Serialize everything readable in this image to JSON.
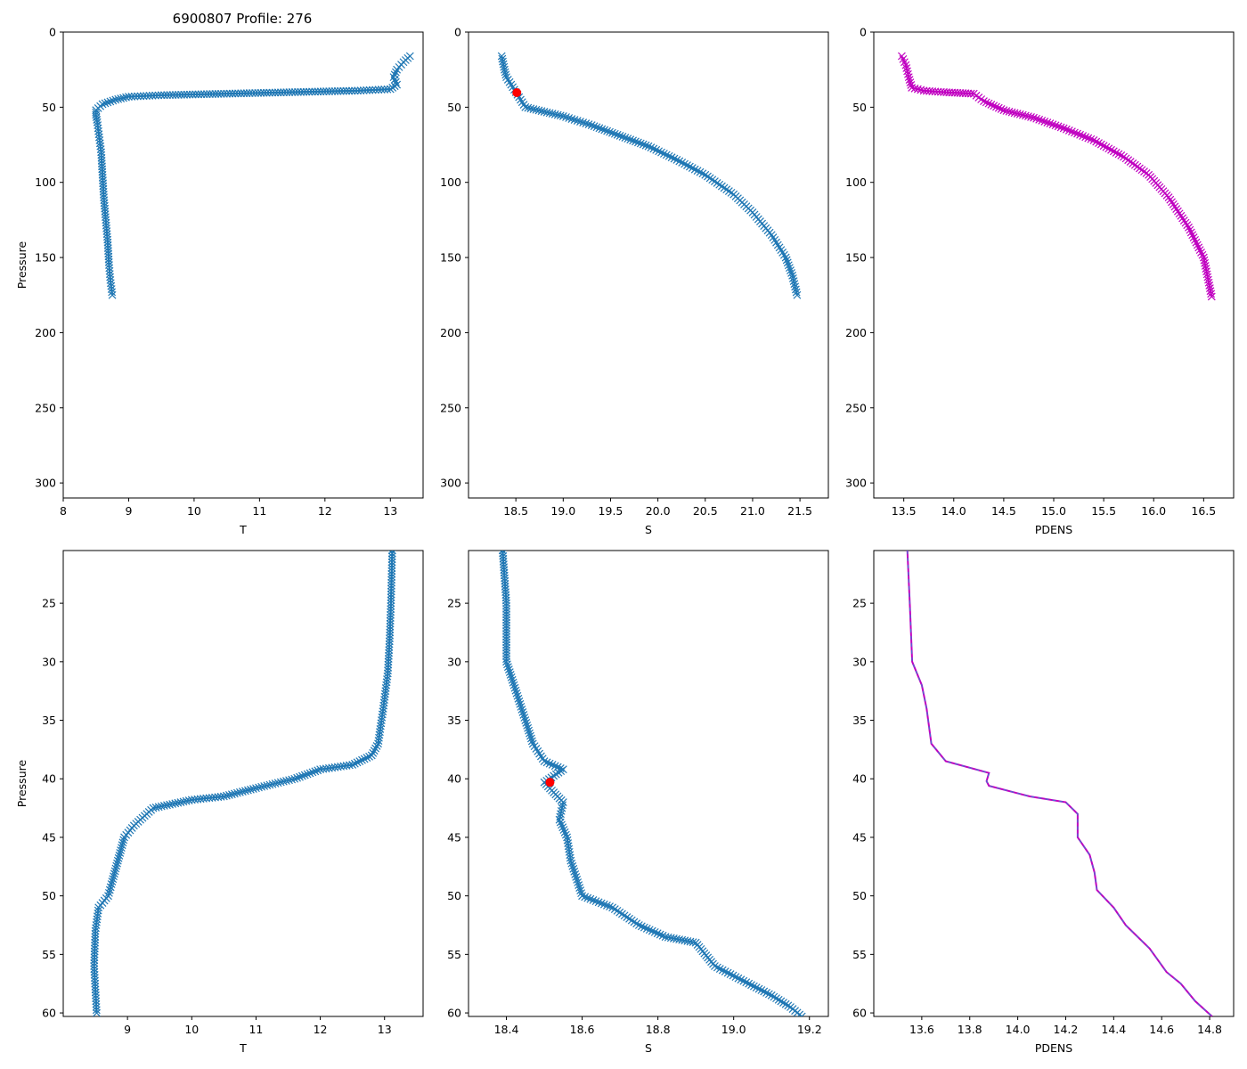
{
  "title": "6900807 Profile: 276",
  "colors": {
    "series": "#1f77b4",
    "density": "#c000c0",
    "marker": "#ff0000",
    "density_dash": "#3a7bd5"
  },
  "chart_data": [
    {
      "type": "line",
      "marker": "x",
      "color": "#1f77b4",
      "xlabel": "T",
      "ylabel": "Pressure",
      "xlim": [
        8,
        13.5
      ],
      "ylim": [
        310,
        0
      ],
      "xticks": [
        "8",
        "9",
        "10",
        "11",
        "12",
        "13"
      ],
      "yticks": [
        "0",
        "50",
        "100",
        "150",
        "200",
        "250",
        "300"
      ],
      "x": [
        13.3,
        13.2,
        13.1,
        13.05,
        13.1,
        13.0,
        12.5,
        11.5,
        10.5,
        9.5,
        9.0,
        8.8,
        8.6,
        8.5,
        8.5,
        8.52,
        8.55,
        8.58,
        8.6,
        8.62,
        8.65,
        8.68,
        8.7,
        8.72,
        8.75
      ],
      "y": [
        16,
        20,
        25,
        30,
        35,
        38,
        39,
        40,
        41,
        42,
        43,
        45,
        48,
        52,
        55,
        60,
        70,
        80,
        95,
        110,
        125,
        140,
        155,
        165,
        175
      ]
    },
    {
      "type": "line",
      "marker": "x",
      "color": "#1f77b4",
      "xlabel": "S",
      "ylabel": "",
      "xlim": [
        18.0,
        21.8
      ],
      "ylim": [
        310,
        0
      ],
      "xticks": [
        "18.5",
        "19.0",
        "19.5",
        "20.0",
        "20.5",
        "21.0",
        "21.5"
      ],
      "yticks": [
        "0",
        "50",
        "100",
        "150",
        "200",
        "250",
        "300"
      ],
      "x": [
        18.35,
        18.38,
        18.4,
        18.45,
        18.5,
        18.55,
        18.6,
        18.8,
        19.0,
        19.3,
        19.6,
        19.9,
        20.2,
        20.5,
        20.8,
        21.0,
        21.2,
        21.35,
        21.42,
        21.47
      ],
      "y": [
        16,
        25,
        30,
        35,
        40,
        45,
        50,
        53,
        56,
        62,
        69,
        76,
        85,
        95,
        108,
        120,
        135,
        150,
        162,
        175
      ],
      "highlight": {
        "x": 18.51,
        "y": 40.3,
        "color": "#ff0000"
      }
    },
    {
      "type": "line",
      "marker": "x",
      "color": "#c000c0",
      "xlabel": "PDENS",
      "ylabel": "",
      "xlim": [
        13.2,
        16.8
      ],
      "ylim": [
        310,
        0
      ],
      "xticks": [
        "13.5",
        "14.0",
        "14.5",
        "15.0",
        "15.5",
        "16.0",
        "16.5"
      ],
      "yticks": [
        "0",
        "50",
        "100",
        "150",
        "200",
        "250",
        "300"
      ],
      "x": [
        13.48,
        13.52,
        13.55,
        13.58,
        13.7,
        13.9,
        14.2,
        14.3,
        14.5,
        14.8,
        15.1,
        15.4,
        15.7,
        15.95,
        16.15,
        16.35,
        16.5,
        16.58
      ],
      "y": [
        16,
        22,
        30,
        37,
        39,
        40,
        41,
        46,
        52,
        57,
        64,
        72,
        83,
        95,
        110,
        130,
        150,
        176
      ]
    },
    {
      "type": "line",
      "marker": "x",
      "color": "#1f77b4",
      "xlabel": "T",
      "ylabel": "Pressure",
      "xlim": [
        8.0,
        13.6
      ],
      "ylim": [
        60.3,
        20.5
      ],
      "xticks": [
        "9",
        "10",
        "11",
        "12",
        "13"
      ],
      "yticks": [
        "25",
        "30",
        "35",
        "40",
        "45",
        "50",
        "55",
        "60"
      ],
      "x": [
        13.12,
        13.1,
        13.08,
        13.05,
        12.98,
        12.9,
        12.8,
        12.5,
        12.0,
        11.6,
        11.0,
        10.5,
        10.0,
        9.4,
        9.1,
        8.95,
        8.85,
        8.75,
        8.7,
        8.55,
        8.5,
        8.48,
        8.5,
        8.52
      ],
      "y": [
        20.5,
        25,
        28,
        31,
        34,
        37,
        38,
        38.8,
        39.2,
        40,
        40.8,
        41.5,
        41.8,
        42.5,
        44,
        45,
        47,
        49,
        50,
        51,
        53,
        56,
        58,
        60
      ]
    },
    {
      "type": "line",
      "marker": "x",
      "color": "#1f77b4",
      "xlabel": "S",
      "ylabel": "",
      "xlim": [
        18.3,
        19.25
      ],
      "ylim": [
        60.3,
        20.5
      ],
      "xticks": [
        "18.4",
        "18.6",
        "18.8",
        "19.0",
        "19.2"
      ],
      "yticks": [
        "25",
        "30",
        "35",
        "40",
        "45",
        "50",
        "55",
        "60"
      ],
      "x": [
        18.39,
        18.4,
        18.4,
        18.42,
        18.45,
        18.47,
        18.5,
        18.55,
        18.5,
        18.52,
        18.55,
        18.54,
        18.56,
        18.57,
        18.6,
        18.68,
        18.75,
        18.82,
        18.9,
        18.95,
        19.04,
        19.1,
        19.15,
        19.18
      ],
      "y": [
        20.5,
        25,
        30,
        32,
        35,
        37,
        38.5,
        39.2,
        40.3,
        41,
        42,
        43.5,
        45,
        47,
        50,
        51,
        52.5,
        53.5,
        54,
        56,
        57.5,
        58.5,
        59.5,
        60.3
      ],
      "highlight": {
        "x": 18.515,
        "y": 40.3,
        "color": "#ff0000"
      }
    },
    {
      "type": "line",
      "marker": "none",
      "color": "#c000c0",
      "xlabel": "PDENS",
      "ylabel": "",
      "xlim": [
        13.4,
        14.9
      ],
      "ylim": [
        60.3,
        20.5
      ],
      "xticks": [
        "13.6",
        "13.8",
        "14.0",
        "14.2",
        "14.4",
        "14.6",
        "14.8"
      ],
      "yticks": [
        "25",
        "30",
        "35",
        "40",
        "45",
        "50",
        "55",
        "60"
      ],
      "x": [
        13.54,
        13.55,
        13.56,
        13.6,
        13.62,
        13.64,
        13.7,
        13.88,
        13.87,
        13.88,
        14.05,
        14.2,
        14.25,
        14.25,
        14.3,
        14.32,
        14.33,
        14.4,
        14.45,
        14.55,
        14.62,
        14.68,
        14.74,
        14.81
      ],
      "y": [
        20.5,
        25,
        30,
        32,
        34,
        37,
        38.5,
        39.5,
        40.2,
        40.6,
        41.5,
        42,
        43,
        45,
        46.5,
        48,
        49.5,
        51,
        52.5,
        54.5,
        56.5,
        57.5,
        59,
        60.3
      ]
    }
  ]
}
